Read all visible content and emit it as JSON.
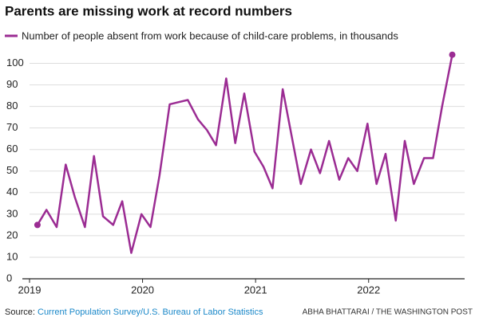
{
  "chart_data": {
    "type": "line",
    "title": "Parents are missing work at record numbers",
    "x": [
      2019.07,
      2019.15,
      2019.24,
      2019.32,
      2019.4,
      2019.49,
      2019.57,
      2019.65,
      2019.74,
      2019.82,
      2019.9,
      2019.99,
      2020.07,
      2020.15,
      2020.24,
      2020.32,
      2020.4,
      2020.49,
      2020.57,
      2020.65,
      2020.74,
      2020.82,
      2020.9,
      2020.99,
      2021.07,
      2021.15,
      2021.24,
      2021.32,
      2021.4,
      2021.49,
      2021.57,
      2021.65,
      2021.74,
      2021.82,
      2021.9,
      2021.99,
      2022.07,
      2022.15,
      2022.24,
      2022.32,
      2022.4,
      2022.49,
      2022.57,
      2022.65,
      2022.74
    ],
    "series": [
      {
        "name": "Number of people absent from work because of child-care problems, in thousands",
        "color": "#9b2c93",
        "values": [
          25,
          32,
          24,
          53,
          38,
          24,
          57,
          29,
          25,
          36,
          12,
          30,
          24,
          48,
          81,
          82,
          83,
          74,
          69,
          62,
          93,
          63,
          86,
          59,
          52,
          42,
          88,
          66,
          44,
          60,
          49,
          64,
          46,
          56,
          50,
          72,
          44,
          58,
          27,
          64,
          44,
          56,
          56,
          80,
          104
        ]
      }
    ],
    "xlim": [
      2019,
      2022.8
    ],
    "xticks": [
      2019,
      2020,
      2021,
      2022
    ],
    "ylim": [
      0,
      105
    ],
    "yticks": [
      0,
      10,
      20,
      30,
      40,
      50,
      60,
      70,
      80,
      90,
      100
    ],
    "grid": true,
    "source_label": "Source:",
    "source": "Current Population Survey/U.S. Bureau of Labor Statistics",
    "credit": "ABHA BHATTARAI / THE WASHINGTON POST"
  }
}
